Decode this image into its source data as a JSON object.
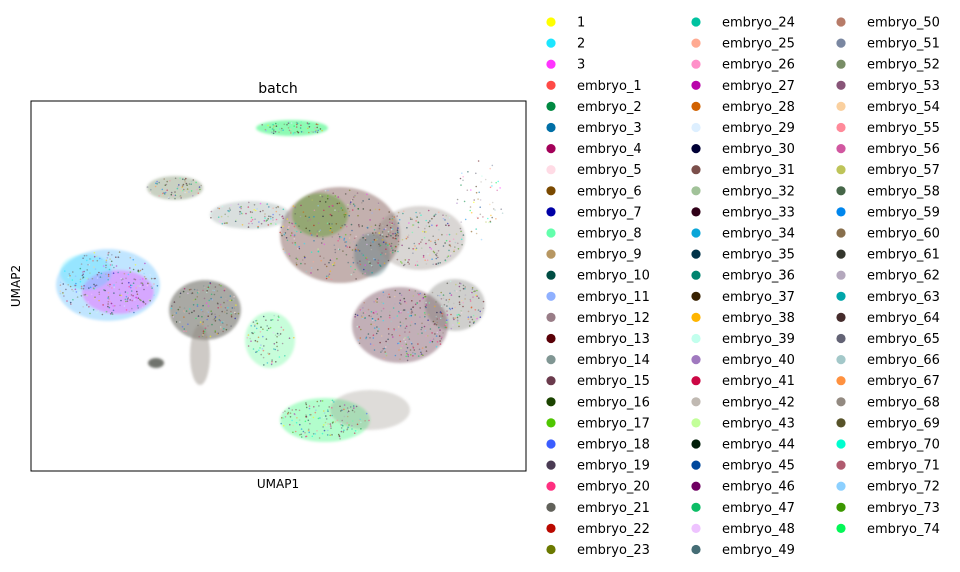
{
  "chart_data": {
    "type": "scatter",
    "title": "batch",
    "xlabel": "UMAP1",
    "ylabel": "UMAP2",
    "grid": false,
    "legend_placement": "right",
    "legend_columns": 3,
    "series": [
      {
        "name": "1",
        "color": "#ffff00"
      },
      {
        "name": "2",
        "color": "#1ce6ff"
      },
      {
        "name": "3",
        "color": "#ff34ff"
      },
      {
        "name": "embryo_1",
        "color": "#ff4a46"
      },
      {
        "name": "embryo_2",
        "color": "#008941"
      },
      {
        "name": "embryo_3",
        "color": "#006fa6"
      },
      {
        "name": "embryo_4",
        "color": "#a30059"
      },
      {
        "name": "embryo_5",
        "color": "#ffdbe5"
      },
      {
        "name": "embryo_6",
        "color": "#7a4900"
      },
      {
        "name": "embryo_7",
        "color": "#0000a6"
      },
      {
        "name": "embryo_8",
        "color": "#63ffac"
      },
      {
        "name": "embryo_9",
        "color": "#b79762"
      },
      {
        "name": "embryo_10",
        "color": "#004d43"
      },
      {
        "name": "embryo_11",
        "color": "#8fb0ff"
      },
      {
        "name": "embryo_12",
        "color": "#997d87"
      },
      {
        "name": "embryo_13",
        "color": "#5a0007"
      },
      {
        "name": "embryo_14",
        "color": "#809693"
      },
      {
        "name": "embryo_15",
        "color": "#6a3a4c"
      },
      {
        "name": "embryo_16",
        "color": "#1b4400"
      },
      {
        "name": "embryo_17",
        "color": "#4fc601"
      },
      {
        "name": "embryo_18",
        "color": "#3b5dff"
      },
      {
        "name": "embryo_19",
        "color": "#4a3b53"
      },
      {
        "name": "embryo_20",
        "color": "#ff2f80"
      },
      {
        "name": "embryo_21",
        "color": "#61615a"
      },
      {
        "name": "embryo_22",
        "color": "#ba0900"
      },
      {
        "name": "embryo_23",
        "color": "#6b7900"
      },
      {
        "name": "embryo_24",
        "color": "#00c2a0"
      },
      {
        "name": "embryo_25",
        "color": "#ffaa92"
      },
      {
        "name": "embryo_26",
        "color": "#ff90c9"
      },
      {
        "name": "embryo_27",
        "color": "#b903aa"
      },
      {
        "name": "embryo_28",
        "color": "#d16100"
      },
      {
        "name": "embryo_29",
        "color": "#ddefff"
      },
      {
        "name": "embryo_30",
        "color": "#000035"
      },
      {
        "name": "embryo_31",
        "color": "#7b4f4b"
      },
      {
        "name": "embryo_32",
        "color": "#a1c299"
      },
      {
        "name": "embryo_33",
        "color": "#300018"
      },
      {
        "name": "embryo_34",
        "color": "#0aa6d8"
      },
      {
        "name": "embryo_35",
        "color": "#013349"
      },
      {
        "name": "embryo_36",
        "color": "#00846f"
      },
      {
        "name": "embryo_37",
        "color": "#372101"
      },
      {
        "name": "embryo_38",
        "color": "#ffb500"
      },
      {
        "name": "embryo_39",
        "color": "#c2ffed"
      },
      {
        "name": "embryo_40",
        "color": "#a079bf"
      },
      {
        "name": "embryo_41",
        "color": "#cc0744"
      },
      {
        "name": "embryo_42",
        "color": "#c0b9b2"
      },
      {
        "name": "embryo_43",
        "color": "#c2ff99"
      },
      {
        "name": "embryo_44",
        "color": "#001e09"
      },
      {
        "name": "embryo_45",
        "color": "#00489c"
      },
      {
        "name": "embryo_46",
        "color": "#6f0062"
      },
      {
        "name": "embryo_47",
        "color": "#0cbd66"
      },
      {
        "name": "embryo_48",
        "color": "#eec3ff"
      },
      {
        "name": "embryo_49",
        "color": "#456d75"
      },
      {
        "name": "embryo_50",
        "color": "#b77b68"
      },
      {
        "name": "embryo_51",
        "color": "#7a87a1"
      },
      {
        "name": "embryo_52",
        "color": "#788d66"
      },
      {
        "name": "embryo_53",
        "color": "#885578"
      },
      {
        "name": "embryo_54",
        "color": "#fad09f"
      },
      {
        "name": "embryo_55",
        "color": "#ff8a9a"
      },
      {
        "name": "embryo_56",
        "color": "#d157a0"
      },
      {
        "name": "embryo_57",
        "color": "#bec459"
      },
      {
        "name": "embryo_58",
        "color": "#456648"
      },
      {
        "name": "embryo_59",
        "color": "#0086ed"
      },
      {
        "name": "embryo_60",
        "color": "#886f4c"
      },
      {
        "name": "embryo_61",
        "color": "#34362d"
      },
      {
        "name": "embryo_62",
        "color": "#b4a8bd"
      },
      {
        "name": "embryo_63",
        "color": "#00a6aa"
      },
      {
        "name": "embryo_64",
        "color": "#452c2c"
      },
      {
        "name": "embryo_65",
        "color": "#636375"
      },
      {
        "name": "embryo_66",
        "color": "#a3c8c9"
      },
      {
        "name": "embryo_67",
        "color": "#ff913f"
      },
      {
        "name": "embryo_68",
        "color": "#938a81"
      },
      {
        "name": "embryo_69",
        "color": "#575329"
      },
      {
        "name": "embryo_70",
        "color": "#00fecf"
      },
      {
        "name": "embryo_71",
        "color": "#b05b6f"
      },
      {
        "name": "embryo_72",
        "color": "#8cd0ff"
      },
      {
        "name": "embryo_73",
        "color": "#3b9700"
      },
      {
        "name": "embryo_74",
        "color": "#04f757"
      }
    ]
  }
}
